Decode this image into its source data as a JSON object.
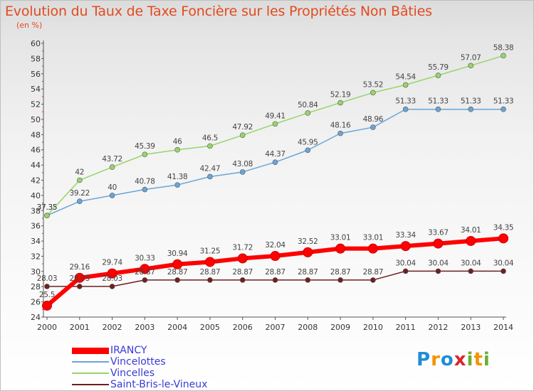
{
  "title": "Evolution du Taux de Taxe Foncière sur les Propriétés Non Bâties",
  "unit_label": "(en %)",
  "logo": {
    "text": "Proxiti"
  },
  "chart_data": {
    "type": "line",
    "title": "Evolution du Taux de Taxe Foncière sur les Propriétés Non Bâties",
    "ylabel": "(en %)",
    "xlabel": "",
    "x": [
      2000,
      2001,
      2002,
      2003,
      2004,
      2005,
      2006,
      2007,
      2008,
      2009,
      2010,
      2011,
      2012,
      2013,
      2014
    ],
    "ylim": [
      24,
      60
    ],
    "yticks": [
      24,
      26,
      28,
      30,
      32,
      34,
      36,
      38,
      40,
      42,
      44,
      46,
      48,
      50,
      52,
      54,
      56,
      58,
      60
    ],
    "grid": false,
    "legend_position": "bottom-left",
    "series": [
      {
        "name": "IRANCY",
        "color": "#ff0000",
        "emphasis": true,
        "values": [
          25.5,
          29.16,
          29.74,
          30.33,
          30.94,
          31.25,
          31.72,
          32.04,
          32.52,
          33.01,
          33.01,
          33.34,
          33.67,
          34.01,
          34.35
        ],
        "labels": [
          "25.5",
          "29.16",
          "29.74",
          "30.33",
          "30.94",
          "31.25",
          "31.72",
          "32.04",
          "32.52",
          "33.01",
          "33.01",
          "33.34",
          "33.67",
          "34.01",
          "34.35"
        ]
      },
      {
        "name": "Vincelottes",
        "color": "#6aa5d6",
        "values": [
          37.35,
          39.22,
          40,
          40.78,
          41.38,
          42.47,
          43.08,
          44.37,
          45.95,
          48.16,
          48.96,
          51.33,
          51.33,
          51.33,
          51.33
        ],
        "labels": [
          "37.35",
          "39.22",
          "40",
          "40.78",
          "41.38",
          "42.47",
          "43.08",
          "44.37",
          "45.95",
          "48.16",
          "48.96",
          "51.33",
          "51.33",
          "51.33",
          "51.33"
        ]
      },
      {
        "name": "Vincelles",
        "color": "#99d46a",
        "values": [
          37.35,
          42,
          43.72,
          45.39,
          46,
          46.5,
          47.92,
          49.41,
          50.84,
          52.19,
          53.52,
          54.54,
          55.79,
          57.07,
          58.38
        ],
        "labels": [
          "37.35",
          "42",
          "43.72",
          "45.39",
          "46",
          "46.5",
          "47.92",
          "49.41",
          "50.84",
          "52.19",
          "53.52",
          "54.54",
          "55.79",
          "57.07",
          "58.38"
        ]
      },
      {
        "name": "Saint-Bris-le-Vineux",
        "color": "#6e1f1f",
        "values": [
          28.03,
          28.03,
          28.03,
          28.87,
          28.87,
          28.87,
          28.87,
          28.87,
          28.87,
          28.87,
          28.87,
          30.04,
          30.04,
          30.04,
          30.04
        ],
        "labels": [
          "28.03",
          "28.03",
          "28.03",
          "28.87",
          "28.87",
          "28.87",
          "28.87",
          "28.87",
          "28.87",
          "28.87",
          "28.87",
          "30.04",
          "30.04",
          "30.04",
          "30.04"
        ]
      }
    ]
  }
}
